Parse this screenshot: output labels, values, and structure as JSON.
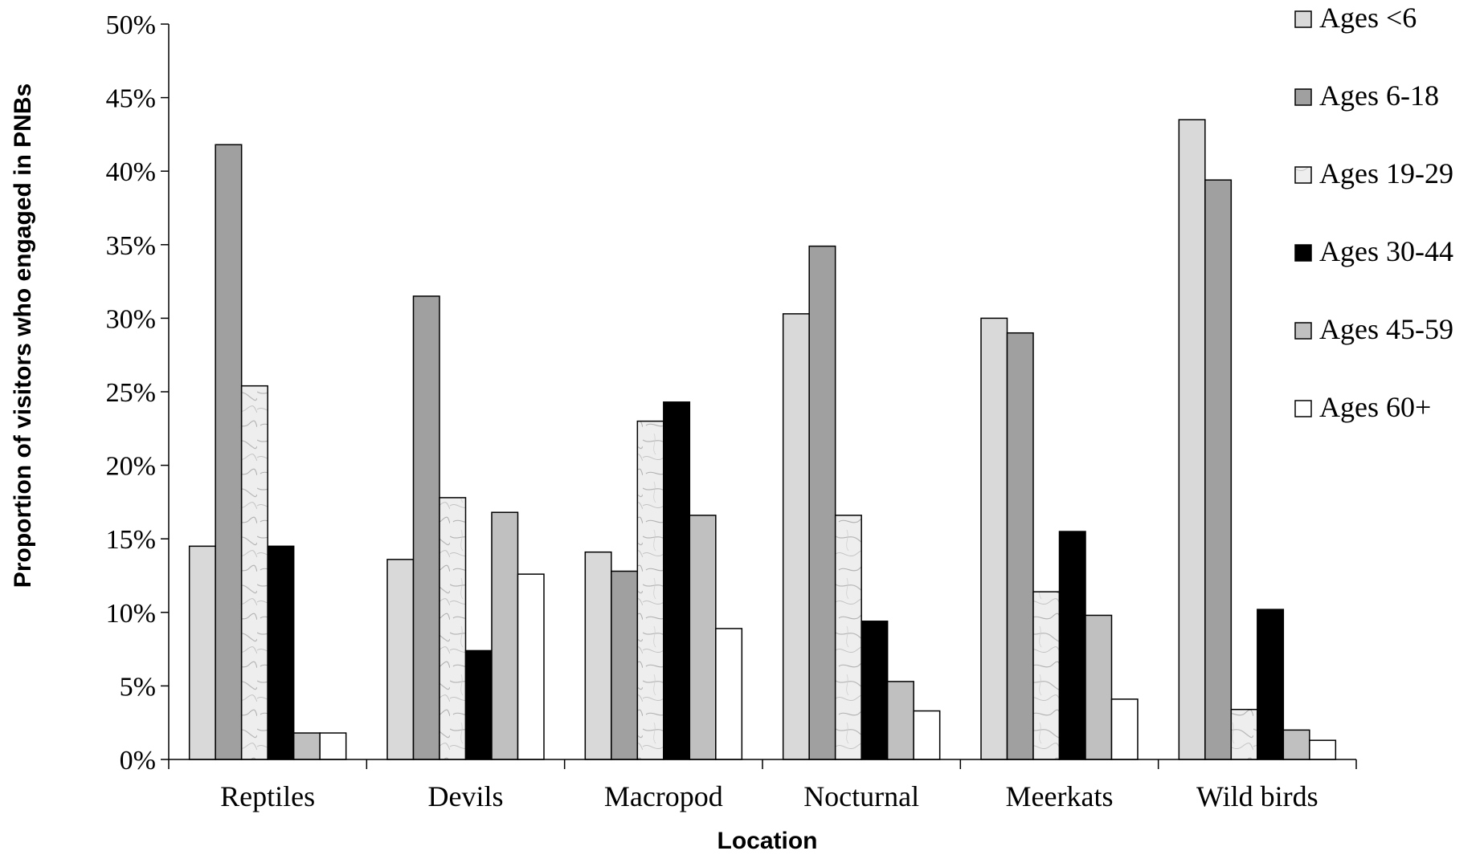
{
  "chart_data": {
    "type": "bar",
    "title": "",
    "xlabel": "Location",
    "ylabel": "Proportion of visitors who engaged in PNBs",
    "ylim": [
      0,
      50
    ],
    "y_ticks": [
      "0%",
      "5%",
      "10%",
      "15%",
      "20%",
      "25%",
      "30%",
      "35%",
      "40%",
      "45%",
      "50%"
    ],
    "grid": false,
    "legend_position": "top-right",
    "categories": [
      "Reptiles",
      "Devils",
      "Macropod",
      "Nocturnal",
      "Meerkats",
      "Wild birds"
    ],
    "series": [
      {
        "name": "Ages <6",
        "fill": "#d9d9d9",
        "pattern": "solid",
        "values": [
          14.5,
          13.6,
          14.1,
          30.3,
          30.0,
          43.5
        ]
      },
      {
        "name": "Ages 6-18",
        "fill": "#a0a0a0",
        "pattern": "solid",
        "values": [
          41.8,
          31.5,
          12.8,
          34.9,
          29.0,
          39.4
        ]
      },
      {
        "name": "Ages 19-29",
        "fill": "#e8e8e8",
        "pattern": "marble",
        "values": [
          25.4,
          17.8,
          23.0,
          16.6,
          11.4,
          3.4
        ]
      },
      {
        "name": "Ages 30-44",
        "fill": "#000000",
        "pattern": "solid",
        "values": [
          14.5,
          7.4,
          24.3,
          9.4,
          15.5,
          10.2
        ]
      },
      {
        "name": "Ages 45-59",
        "fill": "#c0c0c0",
        "pattern": "solid",
        "values": [
          1.8,
          16.8,
          16.6,
          5.3,
          9.8,
          2.0
        ]
      },
      {
        "name": "Ages 60+",
        "fill": "#ffffff",
        "pattern": "solid",
        "values": [
          1.8,
          12.6,
          8.9,
          3.3,
          4.1,
          1.3
        ]
      }
    ]
  }
}
